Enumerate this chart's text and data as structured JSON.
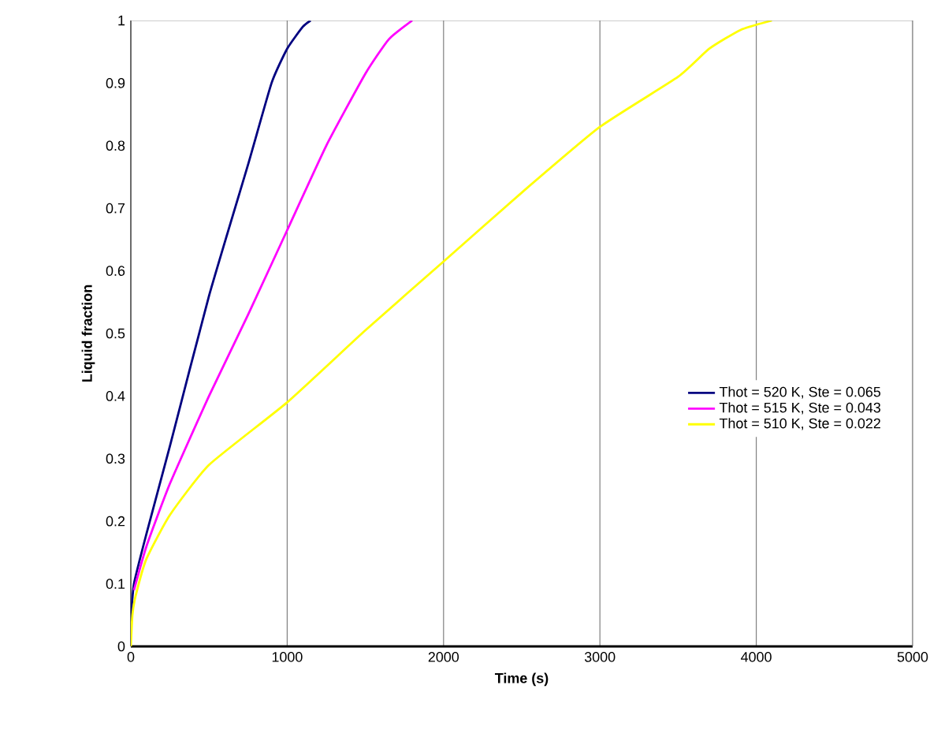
{
  "chart_data": {
    "type": "line",
    "xlabel": "Time (s)",
    "ylabel": "Liquid fraction",
    "xlim": [
      0,
      5000
    ],
    "ylim": [
      0,
      1
    ],
    "xticks": [
      0,
      1000,
      2000,
      3000,
      4000,
      5000
    ],
    "yticks": [
      0,
      0.1,
      0.2,
      0.3,
      0.4,
      0.5,
      0.6,
      0.7,
      0.8,
      0.9,
      1
    ],
    "grid": "x",
    "legend": "right",
    "marker": "none",
    "line_style": "solid",
    "series": [
      {
        "name": "Thot = 520 K, Ste = 0.065",
        "color": "#000080",
        "x": [
          0,
          20,
          100,
          250,
          500,
          750,
          900,
          1000,
          1100,
          1150
        ],
        "values": [
          0.04,
          0.1,
          0.18,
          0.32,
          0.56,
          0.77,
          0.9,
          0.955,
          0.99,
          1
        ]
      },
      {
        "name": "Thot = 515 K, Ste = 0.043",
        "color": "#ff00ff",
        "x": [
          20,
          100,
          250,
          500,
          750,
          1000,
          1250,
          1500,
          1650,
          1800
        ],
        "values": [
          0.09,
          0.16,
          0.26,
          0.4,
          0.53,
          0.665,
          0.8,
          0.915,
          0.97,
          1
        ]
      },
      {
        "name": "Thot = 510 K, Ste = 0.022",
        "color": "#ffff00",
        "x": [
          0,
          10,
          30,
          100,
          250,
          500,
          1000,
          1500,
          2000,
          2500,
          3000,
          3500,
          3700,
          3900,
          4100
        ],
        "values": [
          0,
          0.05,
          0.08,
          0.14,
          0.21,
          0.29,
          0.39,
          0.505,
          0.615,
          0.725,
          0.83,
          0.91,
          0.955,
          0.985,
          1
        ]
      }
    ]
  }
}
